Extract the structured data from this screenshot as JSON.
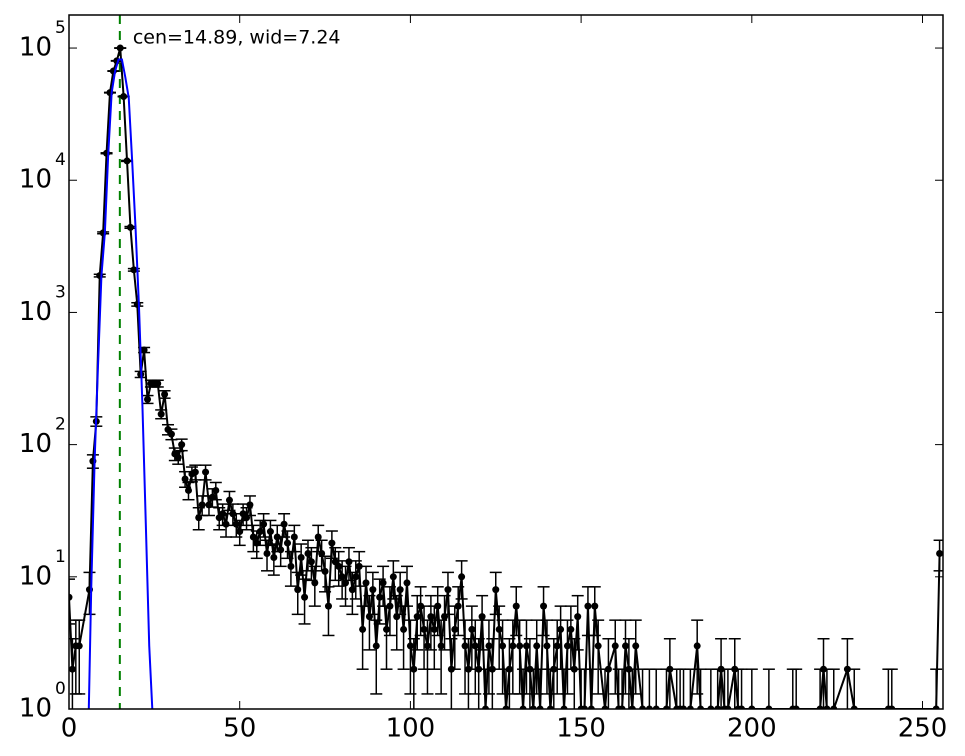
{
  "chart_data": {
    "type": "errorbar",
    "log_y": true,
    "xlim": [
      0,
      256
    ],
    "ylim": [
      1,
      177828
    ],
    "xticks": [
      0,
      50,
      100,
      150,
      200,
      250
    ],
    "yticks": [
      {
        "value": 1,
        "label": "10",
        "exponent": "0"
      },
      {
        "value": 10,
        "label": "10",
        "exponent": "1"
      },
      {
        "value": 100,
        "label": "10",
        "exponent": "2"
      },
      {
        "value": 1000,
        "label": "10",
        "exponent": "3"
      },
      {
        "value": 10000,
        "label": "10",
        "exponent": "4"
      },
      {
        "value": 100000,
        "label": "10",
        "exponent": "5"
      }
    ],
    "annotation": {
      "text": "cen=14.89, wid=7.24",
      "color": "#008000"
    },
    "center_line": {
      "x": 14.89,
      "color": "#008000"
    },
    "series": [
      {
        "color": "#000000",
        "kind": "data",
        "x": [
          0,
          1,
          2,
          3,
          6,
          7,
          8,
          9,
          10,
          11,
          12,
          13,
          14,
          15,
          16,
          17,
          18,
          19,
          20,
          21,
          22,
          23,
          24,
          25,
          26,
          27,
          28,
          29,
          30,
          31,
          32,
          33,
          34,
          35,
          36,
          37,
          38,
          39,
          40,
          41,
          42,
          43,
          44,
          45,
          46,
          47,
          48,
          49,
          50,
          51,
          52,
          53,
          54,
          55,
          56,
          57,
          58,
          59,
          60,
          61,
          62,
          63,
          64,
          65,
          66,
          67,
          68,
          69,
          70,
          71,
          72,
          73,
          74,
          75,
          76,
          77,
          78,
          79,
          80,
          81,
          82,
          83,
          84,
          85,
          86,
          87,
          88,
          89,
          90,
          91,
          92,
          93,
          94,
          95,
          96,
          97,
          98,
          99,
          100,
          101,
          102,
          103,
          104,
          105,
          106,
          107,
          108,
          109,
          110,
          111,
          112,
          113,
          114,
          115,
          116,
          117,
          118,
          119,
          120,
          121,
          122,
          123,
          124,
          125,
          126,
          127,
          128,
          129,
          130,
          131,
          132,
          133,
          134,
          135,
          136,
          137,
          138,
          139,
          140,
          141,
          142,
          143,
          144,
          145,
          146,
          147,
          148,
          149,
          150,
          151,
          152,
          153,
          154,
          155,
          157,
          158,
          160,
          161,
          162,
          163,
          164,
          165,
          166,
          168,
          170,
          172,
          175,
          176,
          178,
          179,
          180,
          182,
          184,
          185,
          188,
          190,
          191,
          192,
          193,
          195,
          196,
          197,
          200,
          205,
          212,
          213,
          220,
          221,
          222,
          224,
          228,
          230,
          240,
          241,
          254,
          255
        ],
        "values": [
          7,
          2,
          3,
          3,
          8,
          75,
          150,
          1900,
          4000,
          16000,
          46000,
          67000,
          80000,
          100000,
          43000,
          14000,
          4400,
          2100,
          1150,
          340,
          520,
          220,
          290,
          290,
          290,
          170,
          240,
          130,
          120,
          85,
          80,
          100,
          55,
          45,
          60,
          62,
          28,
          35,
          62,
          35,
          40,
          45,
          28,
          30,
          25,
          38,
          30,
          25,
          22,
          30,
          28,
          35,
          20,
          18,
          22,
          25,
          15,
          22,
          14,
          20,
          16,
          25,
          18,
          12,
          20,
          8,
          14,
          7,
          15,
          13,
          9,
          20,
          15,
          11,
          6,
          18,
          13,
          12,
          10,
          9,
          13,
          8,
          10,
          12,
          4,
          9,
          5,
          8,
          3,
          7,
          9,
          4,
          6,
          10,
          5,
          8,
          4,
          9,
          3,
          2,
          5,
          6,
          4,
          3,
          5,
          4,
          6,
          3,
          5,
          8,
          2,
          4,
          6,
          10,
          3,
          2,
          4,
          3,
          2,
          5,
          1,
          3,
          2,
          8,
          4,
          3,
          1,
          2,
          3,
          6,
          3,
          1,
          3,
          2,
          1,
          3,
          1,
          6,
          3,
          1,
          2,
          3,
          4,
          1,
          3,
          4,
          2,
          5,
          1,
          1,
          6,
          1,
          6,
          3,
          1,
          2,
          3,
          1,
          1,
          3,
          2,
          1,
          3,
          1,
          1,
          1,
          1,
          2,
          1,
          1,
          1,
          1,
          3,
          1,
          1,
          1,
          2,
          1,
          1,
          2,
          1,
          1,
          1,
          1,
          1,
          1,
          1,
          2,
          1,
          1,
          2,
          1,
          1,
          1,
          1,
          15
        ],
        "errors": [
          2.6,
          1.4,
          1.7,
          1.7,
          2.8,
          8.7,
          12.2,
          43.6,
          63.2,
          126,
          214,
          259,
          283,
          316,
          207,
          118,
          66,
          46,
          34,
          18,
          23,
          15,
          17,
          17,
          17,
          13,
          15.5,
          11.4,
          11,
          9.2,
          8.9,
          10,
          7.4,
          6.7,
          7.7,
          7.9,
          5.3,
          5.9,
          7.9,
          5.9,
          6.3,
          6.7,
          5.3,
          5.5,
          5,
          6.2,
          5.5,
          5,
          4.7,
          5.5,
          5.3,
          5.9,
          4.5,
          4.2,
          4.7,
          5,
          3.9,
          4.7,
          3.7,
          4.5,
          4,
          5,
          4.2,
          3.5,
          4.5,
          2.8,
          3.7,
          2.6,
          3.9,
          3.6,
          3,
          4.5,
          3.9,
          3.3,
          2.4,
          4.2,
          3.6,
          3.5,
          3.2,
          3,
          3.6,
          2.8,
          3.2,
          3.5,
          2,
          3,
          2.2,
          2.8,
          1.7,
          2.6,
          3,
          2,
          2.4,
          3.2,
          2.2,
          2.8,
          2,
          3,
          1.7,
          1.4,
          2.2,
          2.4,
          2,
          1.7,
          2.2,
          2,
          2.4,
          1.7,
          2.2,
          2.8,
          1.4,
          2,
          2.4,
          3.2,
          1.7,
          1.4,
          2,
          1.7,
          1.4,
          2.2,
          1,
          1.7,
          1.4,
          2.8,
          2,
          1.7,
          1,
          1.4,
          1.7,
          2.4,
          1.7,
          1,
          1.7,
          1.4,
          1,
          1.7,
          1,
          2.4,
          1.7,
          1,
          1.4,
          1.7,
          2,
          1,
          1.7,
          2,
          1.4,
          2.2,
          1,
          1,
          2.4,
          1,
          2.4,
          1.7,
          1,
          1.4,
          1.7,
          1,
          1,
          1.7,
          1.4,
          1,
          1.7,
          1,
          1,
          1,
          1,
          1.4,
          1,
          1,
          1,
          1,
          1.7,
          1,
          1,
          1,
          1.4,
          1,
          1,
          1.4,
          1,
          1,
          1,
          1,
          1,
          1,
          1,
          1.4,
          1,
          1,
          1.4,
          1,
          1,
          1,
          1,
          3.9
        ]
      },
      {
        "color": "#0000ff",
        "kind": "fit",
        "x": [
          5.8,
          6.5,
          7.5,
          8.5,
          9.5,
          10.5,
          11.5,
          12.5,
          13.5,
          14.5,
          15.5,
          16.5,
          17.5,
          18.5,
          19.5,
          20.5,
          21.5,
          22.5,
          23.5,
          24.4
        ],
        "values": [
          1,
          8,
          75,
          400,
          1900,
          4000,
          16000,
          46000,
          67000,
          82000,
          82000,
          60000,
          42000,
          14000,
          4300,
          1100,
          200,
          25,
          3,
          1
        ]
      }
    ]
  }
}
